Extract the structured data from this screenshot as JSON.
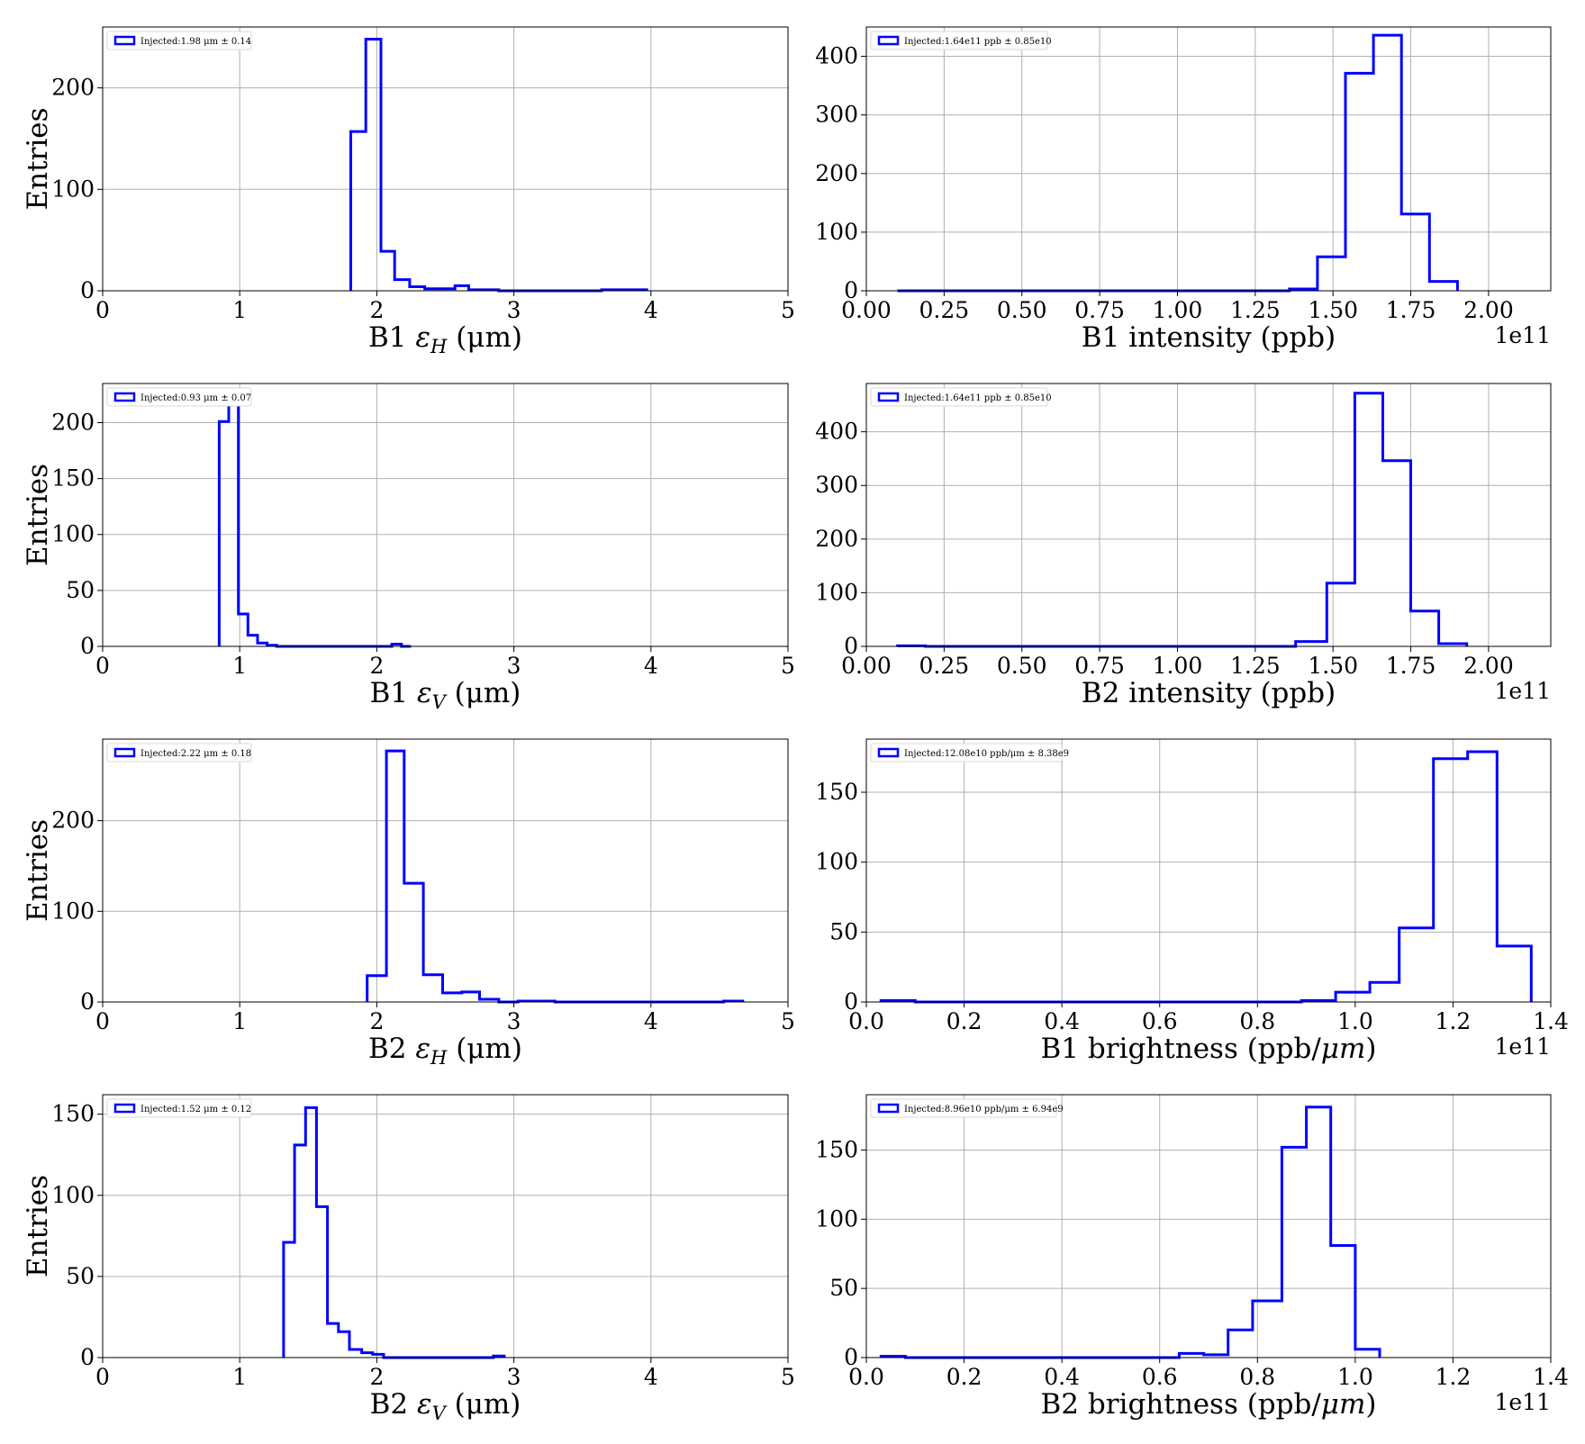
{
  "chart_data": [
    {
      "type": "histogram",
      "xlabel_main": "B1 ",
      "xlabel_sym": "ε",
      "xlabel_sub": "H",
      "xlabel_unit": " (μm)",
      "ylabel": "Entries",
      "legend": "Injected:1.98 μm ± 0.14",
      "xlim": [
        0,
        5
      ],
      "ylim": [
        0,
        260
      ],
      "xticks": [
        0,
        1,
        2,
        3,
        4,
        5
      ],
      "xtick_labels": [
        "0",
        "1",
        "2",
        "3",
        "4",
        "5"
      ],
      "yticks": [
        0,
        100,
        200
      ],
      "ytick_labels": [
        "0",
        "100",
        "200"
      ],
      "bin_edges": [
        1.81,
        1.92,
        2.03,
        2.13,
        2.24,
        2.35,
        2.46,
        2.57,
        2.67,
        2.78,
        2.89,
        3.0,
        3.1,
        3.21,
        3.32,
        3.43,
        3.54,
        3.64,
        3.75,
        3.86,
        3.97
      ],
      "counts": [
        157,
        248,
        39,
        11,
        4,
        2,
        2,
        5,
        1,
        1,
        0,
        0,
        0,
        0,
        0,
        0,
        0,
        1,
        1,
        1
      ],
      "grid": true,
      "legend_position": "upper-left"
    },
    {
      "type": "histogram",
      "xlabel_main": "B1 intensity (ppb)",
      "legend": "Injected:1.64e11 ppb ± 0.85e10",
      "xlim": [
        0,
        2.2
      ],
      "ylim": [
        0,
        450
      ],
      "offset_text": "1e11",
      "xticks": [
        0,
        0.25,
        0.5,
        0.75,
        1.0,
        1.25,
        1.5,
        1.75,
        2.0
      ],
      "xtick_labels": [
        "0.00",
        "0.25",
        "0.50",
        "0.75",
        "1.00",
        "1.25",
        "1.50",
        "1.75",
        "2.00"
      ],
      "yticks": [
        0,
        100,
        200,
        300,
        400
      ],
      "ytick_labels": [
        "0",
        "100",
        "200",
        "300",
        "400"
      ],
      "bin_edges": [
        0.1,
        0.19,
        0.28,
        0.37,
        0.46,
        0.55,
        0.64,
        0.73,
        0.82,
        0.91,
        1.0,
        1.09,
        1.18,
        1.27,
        1.36,
        1.45,
        1.54,
        1.63,
        1.72,
        1.81,
        1.9
      ],
      "counts": [
        0,
        0,
        0,
        0,
        0,
        0,
        0,
        0,
        0,
        0,
        0,
        0,
        0,
        0,
        3,
        58,
        371,
        436,
        131,
        16
      ],
      "grid": true,
      "legend_position": "upper-left"
    },
    {
      "type": "histogram",
      "xlabel_main": "B1 ",
      "xlabel_sym": "ε",
      "xlabel_sub": "V",
      "xlabel_unit": " (μm)",
      "ylabel": "Entries",
      "legend": "Injected:0.93 μm ± 0.07",
      "xlim": [
        0,
        5
      ],
      "ylim": [
        0,
        235
      ],
      "xticks": [
        0,
        1,
        2,
        3,
        4,
        5
      ],
      "xtick_labels": [
        "0",
        "1",
        "2",
        "3",
        "4",
        "5"
      ],
      "yticks": [
        0,
        50,
        100,
        150,
        200
      ],
      "ytick_labels": [
        "0",
        "50",
        "100",
        "150",
        "200"
      ],
      "bin_edges": [
        0.85,
        0.92,
        0.99,
        1.06,
        1.13,
        1.2,
        1.27,
        1.34,
        1.41,
        1.48,
        1.55,
        1.62,
        1.69,
        1.76,
        1.83,
        1.9,
        1.97,
        2.04,
        2.11,
        2.18,
        2.25
      ],
      "counts": [
        201,
        226,
        29,
        10,
        3,
        1,
        0,
        0,
        0,
        0,
        0,
        0,
        0,
        0,
        0,
        0,
        0,
        0,
        2,
        0
      ],
      "grid": true,
      "legend_position": "upper-left"
    },
    {
      "type": "histogram",
      "xlabel_main": "B2 intensity (ppb)",
      "legend": "Injected:1.64e11 ppb ± 0.85e10",
      "xlim": [
        0,
        2.2
      ],
      "ylim": [
        0,
        490
      ],
      "offset_text": "1e11",
      "xticks": [
        0,
        0.25,
        0.5,
        0.75,
        1.0,
        1.25,
        1.5,
        1.75,
        2.0
      ],
      "xtick_labels": [
        "0.00",
        "0.25",
        "0.50",
        "0.75",
        "1.00",
        "1.25",
        "1.50",
        "1.75",
        "2.00"
      ],
      "yticks": [
        0,
        100,
        200,
        300,
        400
      ],
      "ytick_labels": [
        "0",
        "100",
        "200",
        "300",
        "400"
      ],
      "bin_edges": [
        0.1,
        0.19,
        0.28,
        0.37,
        0.46,
        0.55,
        0.64,
        0.73,
        0.82,
        0.91,
        1.0,
        1.09,
        1.18,
        1.28,
        1.38,
        1.48,
        1.57,
        1.66,
        1.75,
        1.84,
        1.93
      ],
      "counts": [
        1,
        0,
        0,
        0,
        0,
        0,
        0,
        0,
        0,
        0,
        0,
        0,
        0,
        0,
        9,
        118,
        472,
        346,
        66,
        5
      ],
      "grid": true,
      "legend_position": "upper-left"
    },
    {
      "type": "histogram",
      "xlabel_main": "B2 ",
      "xlabel_sym": "ε",
      "xlabel_sub": "H",
      "xlabel_unit": " (μm)",
      "ylabel": "Entries",
      "legend": "Injected:2.22 μm ± 0.18",
      "xlim": [
        0,
        5
      ],
      "ylim": [
        0,
        290
      ],
      "xticks": [
        0,
        1,
        2,
        3,
        4,
        5
      ],
      "xtick_labels": [
        "0",
        "1",
        "2",
        "3",
        "4",
        "5"
      ],
      "yticks": [
        0,
        100,
        200
      ],
      "ytick_labels": [
        "0",
        "100",
        "200"
      ],
      "bin_edges": [
        1.93,
        2.07,
        2.2,
        2.34,
        2.48,
        2.62,
        2.75,
        2.89,
        3.03,
        3.16,
        3.3,
        3.44,
        3.58,
        3.71,
        3.85,
        3.99,
        4.12,
        4.26,
        4.4,
        4.53,
        4.67
      ],
      "counts": [
        29,
        277,
        131,
        30,
        10,
        11,
        3,
        0,
        1,
        1,
        0,
        0,
        0,
        0,
        0,
        0,
        0,
        0,
        0,
        1
      ],
      "grid": true,
      "legend_position": "upper-left"
    },
    {
      "type": "histogram",
      "xlabel_main": "B1 brightness (ppb/",
      "xlabel_sym": "μm",
      "xlabel_unit": ")",
      "legend": "Injected:12.08e10 ppb/μm ± 8.38e9",
      "xlim": [
        0,
        1.4
      ],
      "ylim": [
        0,
        188
      ],
      "offset_text": "1e11",
      "xticks": [
        0,
        0.2,
        0.4,
        0.6,
        0.8,
        1.0,
        1.2,
        1.4
      ],
      "xtick_labels": [
        "0.0",
        "0.2",
        "0.4",
        "0.6",
        "0.8",
        "1.0",
        "1.2",
        "1.4"
      ],
      "yticks": [
        0,
        50,
        100,
        150
      ],
      "ytick_labels": [
        "0",
        "50",
        "100",
        "150"
      ],
      "bin_edges": [
        0.03,
        0.1,
        0.16,
        0.23,
        0.3,
        0.36,
        0.43,
        0.5,
        0.56,
        0.63,
        0.7,
        0.76,
        0.83,
        0.89,
        0.96,
        1.03,
        1.09,
        1.16,
        1.23,
        1.29,
        1.36
      ],
      "counts": [
        1,
        0,
        0,
        0,
        0,
        0,
        0,
        0,
        0,
        0,
        0,
        0,
        0,
        1,
        7,
        14,
        53,
        174,
        179,
        40
      ],
      "grid": true,
      "legend_position": "upper-left"
    },
    {
      "type": "histogram",
      "xlabel_main": "B2 ",
      "xlabel_sym": "ε",
      "xlabel_sub": "V",
      "xlabel_unit": " (μm)",
      "ylabel": "Entries",
      "legend": "Injected:1.52 μm ± 0.12",
      "xlim": [
        0,
        5
      ],
      "ylim": [
        0,
        162
      ],
      "xticks": [
        0,
        1,
        2,
        3,
        4,
        5
      ],
      "xtick_labels": [
        "0",
        "1",
        "2",
        "3",
        "4",
        "5"
      ],
      "yticks": [
        0,
        50,
        100,
        150
      ],
      "ytick_labels": [
        "0",
        "50",
        "100",
        "150"
      ],
      "bin_edges": [
        1.32,
        1.4,
        1.48,
        1.56,
        1.64,
        1.72,
        1.8,
        1.89,
        1.97,
        2.05,
        2.13,
        2.21,
        2.29,
        2.37,
        2.45,
        2.53,
        2.61,
        2.69,
        2.77,
        2.85,
        2.93
      ],
      "counts": [
        71,
        131,
        154,
        93,
        21,
        16,
        5,
        3,
        2,
        0,
        0,
        0,
        0,
        0,
        0,
        0,
        0,
        0,
        0,
        1
      ],
      "grid": true,
      "legend_position": "upper-left"
    },
    {
      "type": "histogram",
      "xlabel_main": "B2 brightness (ppb/",
      "xlabel_sym": "μm",
      "xlabel_unit": ")",
      "legend": "Injected:8.96e10 ppb/μm ± 6.94e9",
      "xlim": [
        0,
        1.4
      ],
      "ylim": [
        0,
        190
      ],
      "offset_text": "1e11",
      "xticks": [
        0,
        0.2,
        0.4,
        0.6,
        0.8,
        1.0,
        1.2,
        1.4
      ],
      "xtick_labels": [
        "0.0",
        "0.2",
        "0.4",
        "0.6",
        "0.8",
        "1.0",
        "1.2",
        "1.4"
      ],
      "yticks": [
        0,
        50,
        100,
        150
      ],
      "ytick_labels": [
        "0",
        "50",
        "100",
        "150"
      ],
      "bin_edges": [
        0.03,
        0.08,
        0.13,
        0.18,
        0.23,
        0.28,
        0.33,
        0.38,
        0.44,
        0.49,
        0.54,
        0.59,
        0.64,
        0.69,
        0.74,
        0.79,
        0.85,
        0.9,
        0.95,
        1.0,
        1.05
      ],
      "counts": [
        1,
        0,
        0,
        0,
        0,
        0,
        0,
        0,
        0,
        0,
        0,
        0,
        3,
        2,
        20,
        41,
        152,
        181,
        81,
        6
      ],
      "grid": true,
      "legend_position": "upper-left"
    }
  ]
}
